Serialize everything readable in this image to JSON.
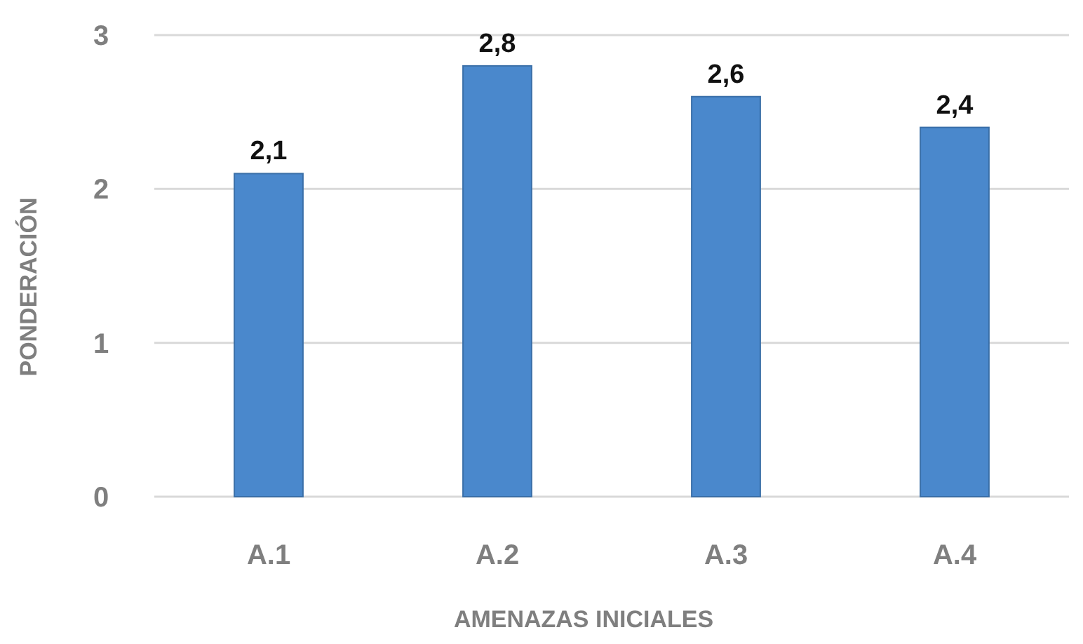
{
  "chart_data": {
    "type": "bar",
    "xlabel": "AMENAZAS INICIALES",
    "ylabel": "PONDERACIÓN",
    "categories": [
      "A.1",
      "A.2",
      "A.3",
      "A.4"
    ],
    "values": [
      2.1,
      2.8,
      2.6,
      2.4
    ],
    "value_labels": [
      "2,1",
      "2,8",
      "2,6",
      "2,4"
    ],
    "color": "#4a88cc",
    "ylim": [
      0,
      3
    ],
    "yticks": [
      0,
      1,
      2,
      3
    ],
    "grid": "y"
  }
}
